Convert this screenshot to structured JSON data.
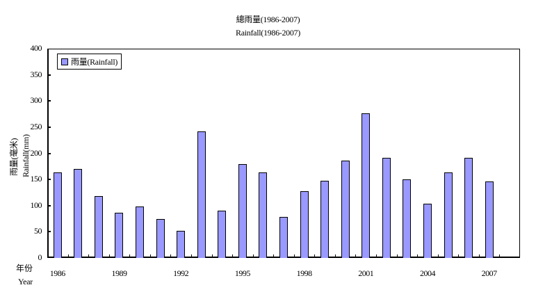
{
  "chart_data": {
    "type": "bar",
    "title": "總雨量(1986-2007)",
    "subtitle": "Rainfall(1986-2007)",
    "xlabel": "年份 Year",
    "xlabel_zh": "年份",
    "xlabel_en": "Year",
    "ylabel": "雨量(毫米) Rainfall(mm)",
    "ylabel_zh": "雨量(毫米)",
    "ylabel_en": "Rainfall(mm)",
    "ylim": [
      0,
      400
    ],
    "yticks": [
      0,
      50,
      100,
      150,
      200,
      250,
      300,
      350,
      400
    ],
    "xtick_labels": [
      "1986",
      "1989",
      "1992",
      "1995",
      "1998",
      "2001",
      "2004",
      "2007"
    ],
    "grid": false,
    "legend_position": "top-left inside",
    "categories": [
      "1986",
      "1987",
      "1988",
      "1989",
      "1990",
      "1991",
      "1992",
      "1993",
      "1994",
      "1995",
      "1996",
      "1997",
      "1998",
      "1999",
      "2000",
      "2001",
      "2002",
      "2003",
      "2004",
      "2005",
      "2006",
      "2007"
    ],
    "series": [
      {
        "name": "雨量(Rainfall)",
        "color": "#9999ff",
        "values": [
          163,
          170,
          118,
          86,
          98,
          74,
          52,
          242,
          90,
          179,
          163,
          78,
          128,
          147,
          186,
          276,
          191,
          150,
          104,
          163,
          191,
          146
        ]
      }
    ]
  }
}
